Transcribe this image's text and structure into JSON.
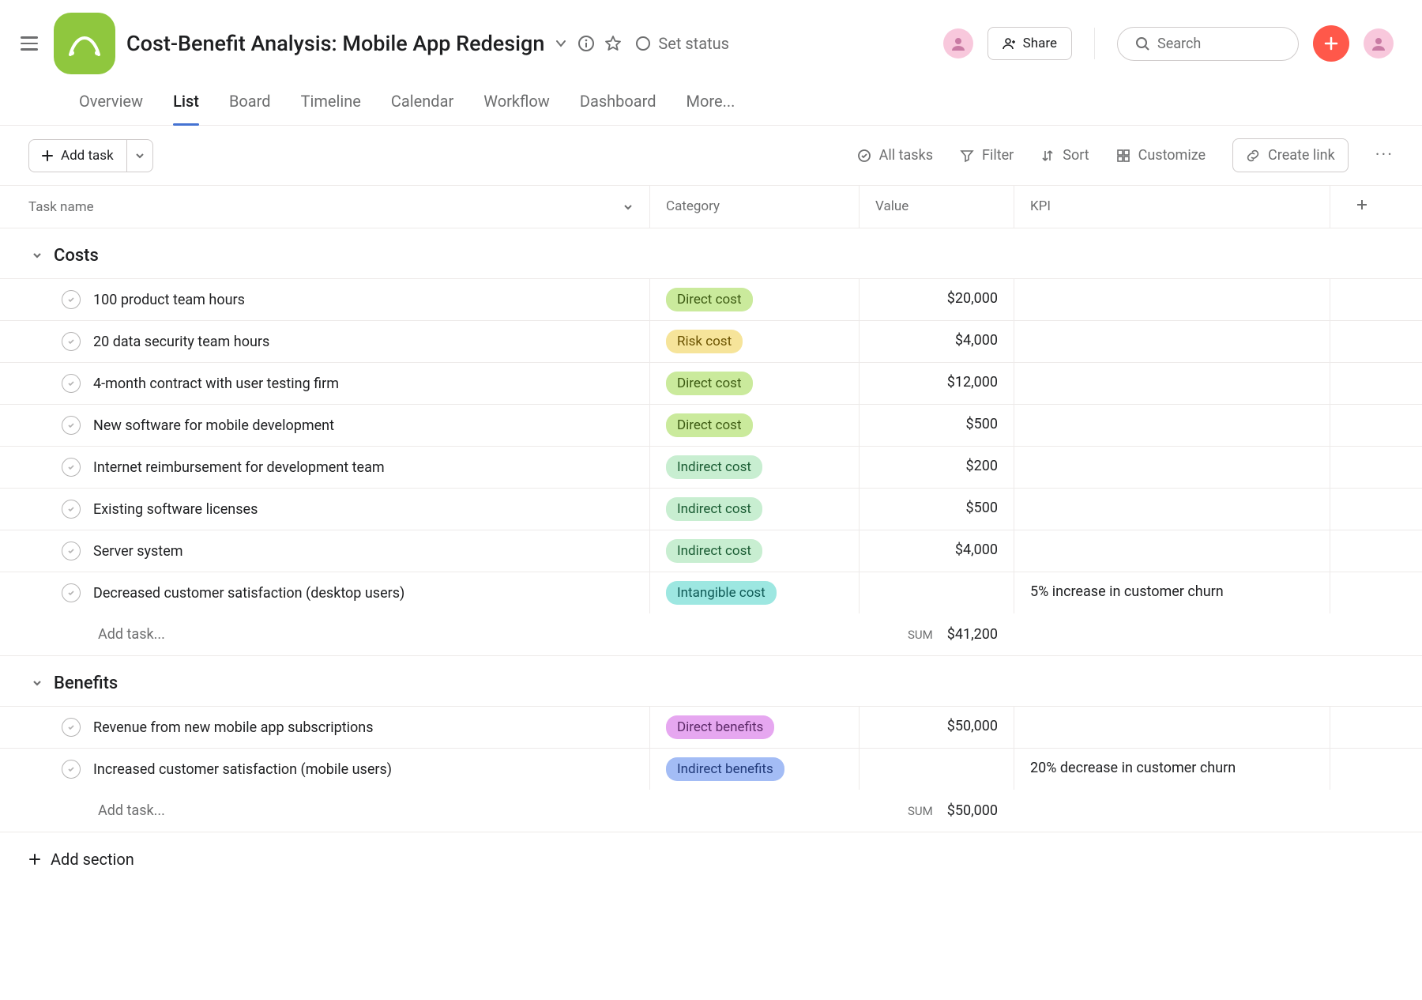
{
  "header": {
    "title": "Cost-Benefit Analysis: Mobile App Redesign",
    "set_status": "Set status",
    "share_label": "Share",
    "search_placeholder": "Search",
    "project_icon_bg": "#8FC73E"
  },
  "tabs": {
    "overview": "Overview",
    "list": "List",
    "board": "Board",
    "timeline": "Timeline",
    "calendar": "Calendar",
    "workflow": "Workflow",
    "dashboard": "Dashboard",
    "more": "More..."
  },
  "toolbar": {
    "add_task": "Add task",
    "all_tasks": "All tasks",
    "filter": "Filter",
    "sort": "Sort",
    "customize": "Customize",
    "create_link": "Create link"
  },
  "columns": {
    "task_name": "Task name",
    "category": "Category",
    "value": "Value",
    "kpi": "KPI"
  },
  "category_styles": {
    "direct_cost": {
      "label": "Direct cost",
      "bg": "#caea9c",
      "fg": "#3c5a12"
    },
    "risk_cost": {
      "label": "Risk cost",
      "bg": "#f6e49a",
      "fg": "#6b5300"
    },
    "indirect_cost": {
      "label": "Indirect cost",
      "bg": "#c8eed1",
      "fg": "#1a5c33"
    },
    "intangible_cost": {
      "label": "Intangible cost",
      "bg": "#9de7e1",
      "fg": "#0f5a56"
    },
    "direct_benefits": {
      "label": "Direct benefits",
      "bg": "#e6a7f0",
      "fg": "#5d2a69"
    },
    "indirect_benefits": {
      "label": "Indirect benefits",
      "bg": "#a3bcf5",
      "fg": "#213a7a"
    }
  },
  "sections": [
    {
      "title": "Costs",
      "rows": [
        {
          "name": "100 product team hours",
          "cat": "direct_cost",
          "value": "$20,000",
          "kpi": ""
        },
        {
          "name": "20 data security team hours",
          "cat": "risk_cost",
          "value": "$4,000",
          "kpi": ""
        },
        {
          "name": "4-month contract with user testing firm",
          "cat": "direct_cost",
          "value": "$12,000",
          "kpi": ""
        },
        {
          "name": "New software for mobile development",
          "cat": "direct_cost",
          "value": "$500",
          "kpi": ""
        },
        {
          "name": "Internet reimbursement for development team",
          "cat": "indirect_cost",
          "value": "$200",
          "kpi": ""
        },
        {
          "name": "Existing software licenses",
          "cat": "indirect_cost",
          "value": "$500",
          "kpi": ""
        },
        {
          "name": "Server system",
          "cat": "indirect_cost",
          "value": "$4,000",
          "kpi": ""
        },
        {
          "name": "Decreased customer satisfaction (desktop users)",
          "cat": "intangible_cost",
          "value": "",
          "kpi": "5% increase in customer churn"
        }
      ],
      "add_task_label": "Add task...",
      "sum_label": "SUM",
      "sum_value": "$41,200"
    },
    {
      "title": "Benefits",
      "rows": [
        {
          "name": "Revenue from new mobile app subscriptions",
          "cat": "direct_benefits",
          "value": "$50,000",
          "kpi": ""
        },
        {
          "name": "Increased customer satisfaction (mobile users)",
          "cat": "indirect_benefits",
          "value": "",
          "kpi": "20% decrease in customer churn"
        }
      ],
      "add_task_label": "Add task...",
      "sum_label": "SUM",
      "sum_value": "$50,000"
    }
  ],
  "footer": {
    "add_section": "Add section"
  }
}
